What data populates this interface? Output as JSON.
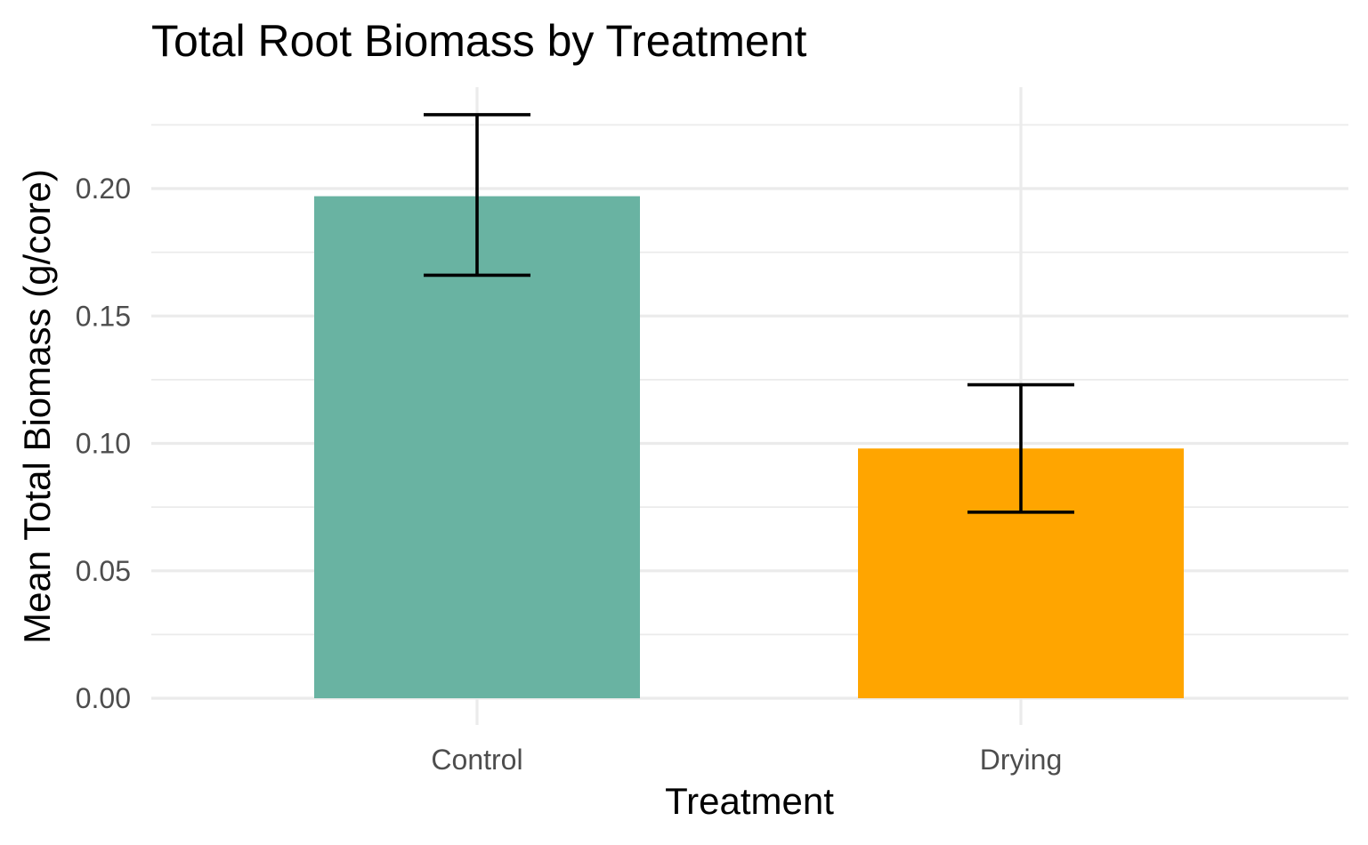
{
  "chart_data": {
    "type": "bar",
    "title": "Total Root Biomass by Treatment",
    "xlabel": "Treatment",
    "ylabel": "Mean Total Biomass (g/core)",
    "categories": [
      "Control",
      "Drying"
    ],
    "values": [
      0.197,
      0.098
    ],
    "error_lower": [
      0.166,
      0.073
    ],
    "error_upper": [
      0.229,
      0.123
    ],
    "colors": [
      "#69b3a2",
      "#ffa500"
    ],
    "ylim": [
      0,
      0.235
    ],
    "yticks": [
      0.0,
      0.05,
      0.1,
      0.15,
      0.2
    ],
    "ytick_labels": [
      "0.00",
      "0.05",
      "0.10",
      "0.15",
      "0.20"
    ],
    "grid": true,
    "legend": "none"
  }
}
